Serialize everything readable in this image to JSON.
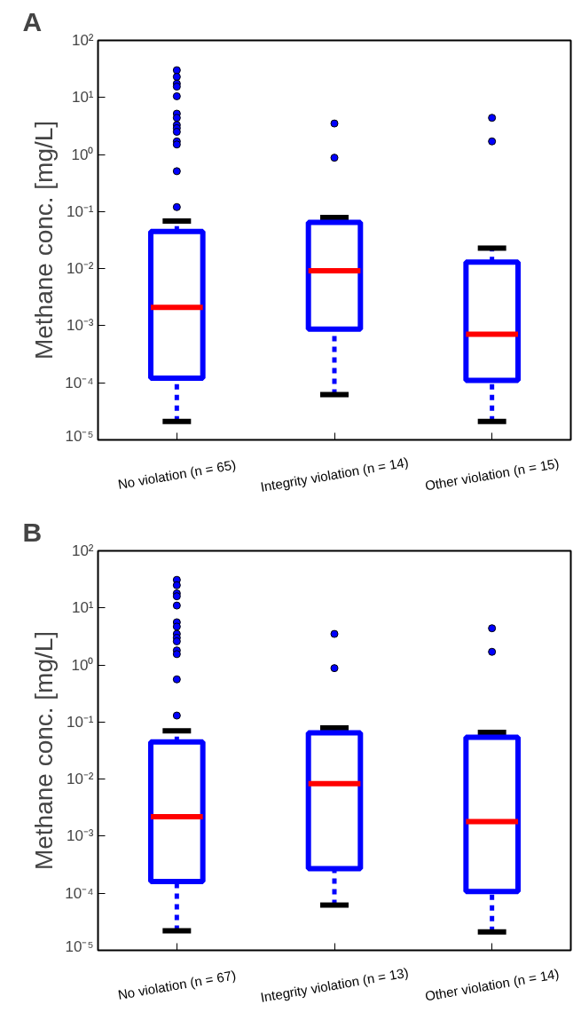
{
  "chart_data": [
    {
      "type": "box",
      "title": "A",
      "ylabel": "Methane conc. [mg/L]",
      "categories": [
        "No violation (n = 65)",
        "Integrity violation (n = 14)",
        "Other violation (n = 15)"
      ],
      "log": true,
      "grid": false,
      "ylim": [
        1e-05,
        100
      ],
      "yticks": [
        {
          "value": 1e-05,
          "label": "10⁻⁵"
        },
        {
          "value": 0.0001,
          "label": "10⁻⁴"
        },
        {
          "value": 0.001,
          "label": "10⁻³"
        },
        {
          "value": 0.01,
          "label": "10⁻²"
        },
        {
          "value": 0.1,
          "label": "10⁻¹"
        },
        {
          "value": 1,
          "label": "10⁰"
        },
        {
          "value": 10,
          "label": "10¹"
        },
        {
          "value": 100,
          "label": "10²"
        }
      ],
      "series": [
        {
          "color": "#0000ff",
          "boxes": [
            {
              "low": 2.1e-05,
              "q1": 0.00012,
              "median": 0.0021,
              "q3": 0.045,
              "high": 0.068,
              "outliers": [
                30,
                23,
                17.5,
                15.5,
                10.5,
                5.2,
                4.4,
                3.3,
                2.9,
                2.5,
                1.7,
                1.5,
                0.51,
                0.12
              ]
            },
            {
              "low": 6.2e-05,
              "q1": 0.00087,
              "median": 0.0092,
              "q3": 0.065,
              "high": 0.079,
              "outliers": [
                3.5,
                0.88
              ]
            },
            {
              "low": 2.1e-05,
              "q1": 0.00011,
              "median": 0.00071,
              "q3": 0.013,
              "high": 0.023,
              "outliers": [
                4.4,
                1.7
              ]
            }
          ]
        }
      ]
    },
    {
      "type": "box",
      "title": "B",
      "ylabel": "Methane conc. [mg/L]",
      "categories": [
        "No violation (n = 67)",
        "Integrity violation (n = 13)",
        "Other violation (n = 14)"
      ],
      "log": true,
      "grid": false,
      "ylim": [
        1e-05,
        100
      ],
      "yticks": [
        {
          "value": 1e-05,
          "label": "10⁻⁵"
        },
        {
          "value": 0.0001,
          "label": "10⁻⁴"
        },
        {
          "value": 0.001,
          "label": "10⁻³"
        },
        {
          "value": 0.01,
          "label": "10⁻²"
        },
        {
          "value": 0.1,
          "label": "10⁻¹"
        },
        {
          "value": 1,
          "label": "10⁰"
        },
        {
          "value": 10,
          "label": "10¹"
        },
        {
          "value": 100,
          "label": "10²"
        }
      ],
      "series": [
        {
          "color": "#0000ff",
          "boxes": [
            {
              "low": 2.2e-05,
              "q1": 0.00016,
              "median": 0.0022,
              "q3": 0.045,
              "high": 0.07,
              "outliers": [
                31,
                25,
                18,
                16,
                11,
                5.6,
                4.7,
                3.5,
                3,
                2.6,
                1.8,
                1.55,
                0.56,
                0.13
              ]
            },
            {
              "low": 6.2e-05,
              "q1": 0.00027,
              "median": 0.0083,
              "q3": 0.065,
              "high": 0.079,
              "outliers": [
                3.5,
                0.88
              ]
            },
            {
              "low": 2.1e-05,
              "q1": 0.000107,
              "median": 0.0018,
              "q3": 0.054,
              "high": 0.066,
              "outliers": [
                4.4,
                1.7
              ]
            }
          ]
        }
      ]
    }
  ]
}
